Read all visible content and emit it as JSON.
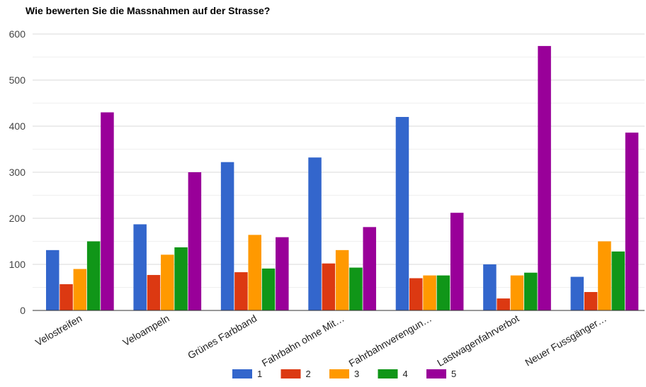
{
  "chart_data": {
    "type": "bar",
    "title": "Wie bewerten Sie die Massnahmen auf der Strasse?",
    "xlabel": "",
    "ylabel": "",
    "ylim": [
      0,
      600
    ],
    "yticks": [
      0,
      100,
      200,
      300,
      400,
      500,
      600
    ],
    "grid": true,
    "legend_position": "bottom",
    "categories": [
      "Velostreifen",
      "Veloampeln",
      "Grünes Farbband",
      "Fahrbahn ohne Mit…",
      "Fahrbahnverengun…",
      "Lastwagenfahrverbot",
      "Neuer Fussgänger…"
    ],
    "series": [
      {
        "name": "1",
        "color": "#3366cc",
        "values": [
          131,
          187,
          322,
          332,
          420,
          100,
          73
        ]
      },
      {
        "name": "2",
        "color": "#dc3912",
        "values": [
          57,
          77,
          83,
          102,
          70,
          26,
          40
        ]
      },
      {
        "name": "3",
        "color": "#ff9900",
        "values": [
          90,
          121,
          164,
          131,
          76,
          76,
          150
        ]
      },
      {
        "name": "4",
        "color": "#109618",
        "values": [
          150,
          137,
          91,
          93,
          76,
          82,
          128
        ]
      },
      {
        "name": "5",
        "color": "#990099",
        "values": [
          430,
          300,
          159,
          181,
          212,
          574,
          386
        ]
      }
    ]
  }
}
